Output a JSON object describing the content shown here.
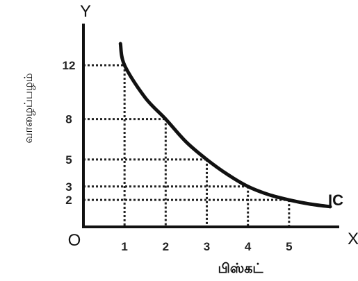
{
  "chart_data": {
    "type": "line",
    "xlabel": "பிஸ்கட்",
    "ylabel": "வாழைப்பழம்",
    "origin_label": "O",
    "x_axis_letter": "X",
    "y_axis_letter": "Y",
    "x_ticks": [
      1,
      2,
      3,
      4,
      5
    ],
    "y_ticks": [
      12,
      8,
      5,
      3,
      2
    ],
    "xlim": [
      0,
      7.2
    ],
    "ylim": [
      0,
      14.8
    ],
    "grid": false,
    "series": [
      {
        "name": "IC",
        "x": [
          0.9,
          1,
          1.5,
          2,
          2.5,
          3,
          3.5,
          4,
          4.5,
          5,
          5.5,
          6
        ],
        "y": [
          13.6,
          12,
          9.6,
          8,
          6.3,
          5,
          3.9,
          3,
          2.4,
          2,
          1.7,
          1.5
        ]
      }
    ],
    "points": [
      {
        "x": 1,
        "y": 12
      },
      {
        "x": 2,
        "y": 8
      },
      {
        "x": 3,
        "y": 5
      },
      {
        "x": 4,
        "y": 3
      },
      {
        "x": 5,
        "y": 2
      }
    ]
  }
}
